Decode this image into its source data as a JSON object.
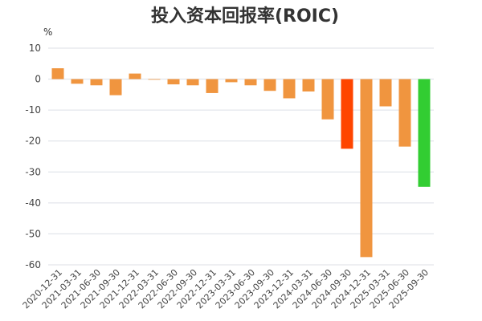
{
  "chart_data": {
    "type": "bar",
    "title": "投入资本回报率(ROIC)",
    "unit": "%",
    "categories": [
      "2020-12-31",
      "2021-03-31",
      "2021-06-30",
      "2021-09-30",
      "2021-12-31",
      "2022-03-31",
      "2022-06-30",
      "2022-09-30",
      "2022-12-31",
      "2023-03-31",
      "2023-06-30",
      "2023-09-30",
      "2023-12-31",
      "2024-03-31",
      "2024-06-30",
      "2024-09-30",
      "2024-12-31",
      "2025-03-31",
      "2025-06-30",
      "2025-09-30"
    ],
    "values": [
      3.5,
      -1.5,
      -2.0,
      -5.2,
      1.8,
      -0.2,
      -1.7,
      -2.0,
      -4.5,
      -1.0,
      -2.0,
      -3.8,
      -6.2,
      -4.0,
      -13.0,
      -22.5,
      -57.5,
      -8.8,
      -21.8,
      -34.8
    ],
    "colors": [
      "#f0953f",
      "#f0953f",
      "#f0953f",
      "#f0953f",
      "#f0953f",
      "#f0953f",
      "#f0953f",
      "#f0953f",
      "#f0953f",
      "#f0953f",
      "#f0953f",
      "#f0953f",
      "#f0953f",
      "#f0953f",
      "#f0953f",
      "#ff4500",
      "#f0953f",
      "#f0953f",
      "#f0953f",
      "#32cd32"
    ],
    "yticks": [
      10,
      0,
      -10,
      -20,
      -30,
      -40,
      -50,
      -60
    ],
    "ylim": [
      -60,
      10
    ],
    "grid": true,
    "xlabel": "",
    "ylabel": ""
  }
}
